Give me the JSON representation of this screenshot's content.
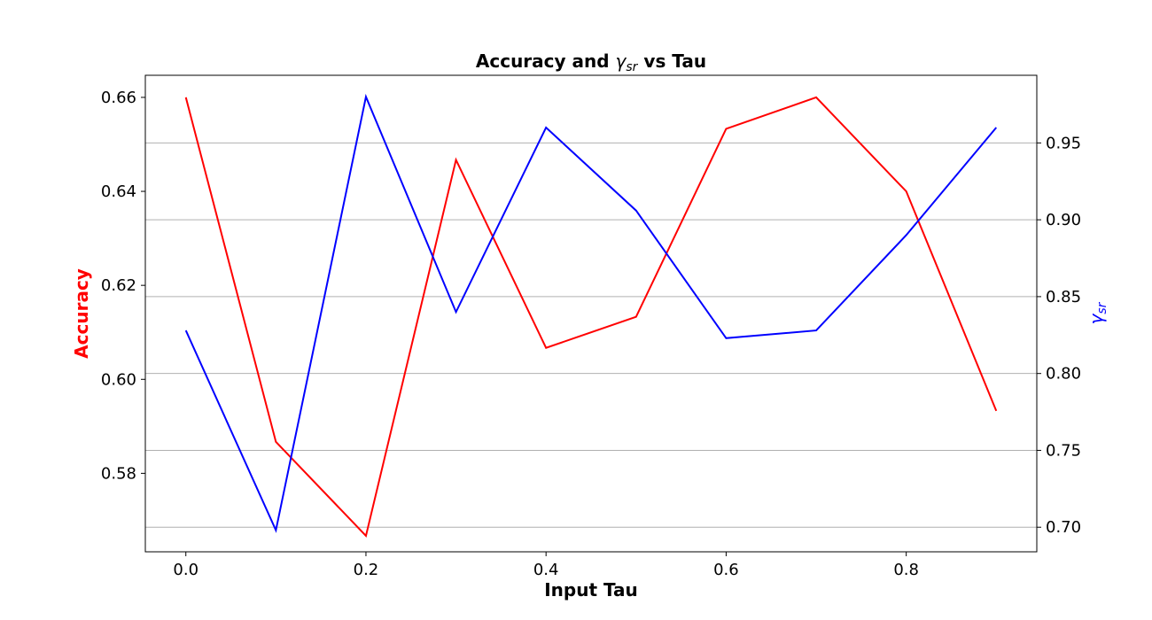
{
  "chart_data": {
    "type": "line",
    "title": {
      "prefix": "Accuracy and ",
      "math_base": "γ",
      "math_sub": "sr",
      "suffix": " vs Tau"
    },
    "xlabel": "Input Tau",
    "ylabel": "Accuracy",
    "y2label": {
      "base": "γ",
      "sub": "sr"
    },
    "x": [
      0.0,
      0.1,
      0.2,
      0.3,
      0.4,
      0.5,
      0.6,
      0.7,
      0.8,
      0.9
    ],
    "xlim": [
      -0.045,
      0.945
    ],
    "xticks": [
      "0.0",
      "0.2",
      "0.4",
      "0.6",
      "0.8"
    ],
    "xtick_values": [
      0.0,
      0.2,
      0.4,
      0.6,
      0.8
    ],
    "series": [
      {
        "axis": "left",
        "color": "#ff0000",
        "values": [
          0.66,
          0.5867,
          0.5667,
          0.6467,
          0.6067,
          0.6133,
          0.6533,
          0.66,
          0.64,
          0.5933
        ]
      },
      {
        "axis": "right",
        "color": "#0000ff",
        "values": [
          0.828,
          0.698,
          0.98,
          0.84,
          0.96,
          0.906,
          0.823,
          0.828,
          0.89,
          0.96
        ]
      }
    ],
    "ylim": [
      0.5633,
      0.6647
    ],
    "yticks": [
      "0.58",
      "0.60",
      "0.62",
      "0.64",
      "0.66"
    ],
    "ytick_values": [
      0.58,
      0.6,
      0.62,
      0.64,
      0.66
    ],
    "y2lim": [
      0.684,
      0.994
    ],
    "y2ticks": [
      "0.70",
      "0.75",
      "0.80",
      "0.85",
      "0.90",
      "0.95"
    ],
    "y2tick_values": [
      0.7,
      0.75,
      0.8,
      0.85,
      0.9,
      0.95
    ],
    "grid": "horizontal (right axis ticks)",
    "colors": {
      "accuracy": "#ff0000",
      "gamma": "#0000ff",
      "grid": "#b0b0b0"
    }
  }
}
